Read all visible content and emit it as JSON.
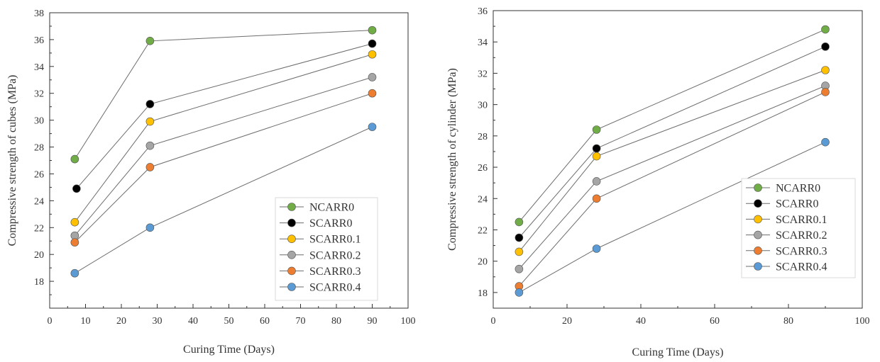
{
  "chart_data": [
    {
      "type": "line",
      "xlabel": "Curing Time (Days)",
      "ylabel": "Compressive strength of cubes (MPa)",
      "xlim": [
        0,
        100
      ],
      "ylim": [
        16,
        38
      ],
      "x_ticks": [
        0,
        10,
        20,
        30,
        40,
        50,
        60,
        70,
        80,
        90,
        100
      ],
      "y_ticks": [
        18,
        20,
        22,
        24,
        26,
        28,
        30,
        32,
        34,
        36,
        38
      ],
      "grid": false,
      "legend_position": "bottom-right",
      "series": [
        {
          "name": "NCARR0",
          "color": "#70ad47",
          "points": [
            [
              7,
              27.1
            ],
            [
              28,
              35.9
            ],
            [
              90,
              36.7
            ]
          ]
        },
        {
          "name": "SCARR0",
          "color": "#000000",
          "points": [
            [
              7.5,
              24.9
            ],
            [
              28,
              31.2
            ],
            [
              90,
              35.7
            ]
          ]
        },
        {
          "name": "SCARR0.1",
          "color": "#ffc000",
          "points": [
            [
              7,
              22.4
            ],
            [
              28,
              29.9
            ],
            [
              90,
              34.9
            ]
          ]
        },
        {
          "name": "SCARR0.2",
          "color": "#a5a5a5",
          "points": [
            [
              7,
              21.4
            ],
            [
              28,
              28.1
            ],
            [
              90,
              33.2
            ]
          ]
        },
        {
          "name": "SCARR0.3",
          "color": "#ed7d31",
          "points": [
            [
              7,
              20.9
            ],
            [
              28,
              26.5
            ],
            [
              90,
              32.0
            ]
          ]
        },
        {
          "name": "SCARR0.4",
          "color": "#5b9bd5",
          "points": [
            [
              7,
              18.6
            ],
            [
              28,
              22.0
            ],
            [
              90,
              29.5
            ]
          ]
        }
      ]
    },
    {
      "type": "line",
      "xlabel": "Curing Time (Days)",
      "ylabel": "Compressive strength of cylinder (MPa)",
      "xlim": [
        0,
        100
      ],
      "ylim": [
        17,
        36
      ],
      "x_ticks": [
        0,
        20,
        40,
        60,
        80,
        100
      ],
      "y_ticks": [
        18,
        20,
        22,
        24,
        26,
        28,
        30,
        32,
        34,
        36
      ],
      "grid": false,
      "legend_position": "bottom-right",
      "series": [
        {
          "name": "NCARR0",
          "color": "#70ad47",
          "points": [
            [
              7,
              22.5
            ],
            [
              28,
              28.4
            ],
            [
              90,
              34.8
            ]
          ]
        },
        {
          "name": "SCARR0",
          "color": "#000000",
          "points": [
            [
              7,
              21.5
            ],
            [
              28,
              27.2
            ],
            [
              90,
              33.7
            ]
          ]
        },
        {
          "name": "SCARR0.1",
          "color": "#ffc000",
          "points": [
            [
              7,
              20.6
            ],
            [
              28,
              26.7
            ],
            [
              90,
              32.2
            ]
          ]
        },
        {
          "name": "SCARR0.2",
          "color": "#a5a5a5",
          "points": [
            [
              7,
              19.5
            ],
            [
              28,
              25.1
            ],
            [
              90,
              31.2
            ]
          ]
        },
        {
          "name": "SCARR0.3",
          "color": "#ed7d31",
          "points": [
            [
              7,
              18.4
            ],
            [
              28,
              24.0
            ],
            [
              90,
              30.8
            ]
          ]
        },
        {
          "name": "SCARR0.4",
          "color": "#5b9bd5",
          "points": [
            [
              7,
              18.0
            ],
            [
              28,
              20.8
            ],
            [
              90,
              27.6
            ]
          ]
        }
      ]
    }
  ]
}
